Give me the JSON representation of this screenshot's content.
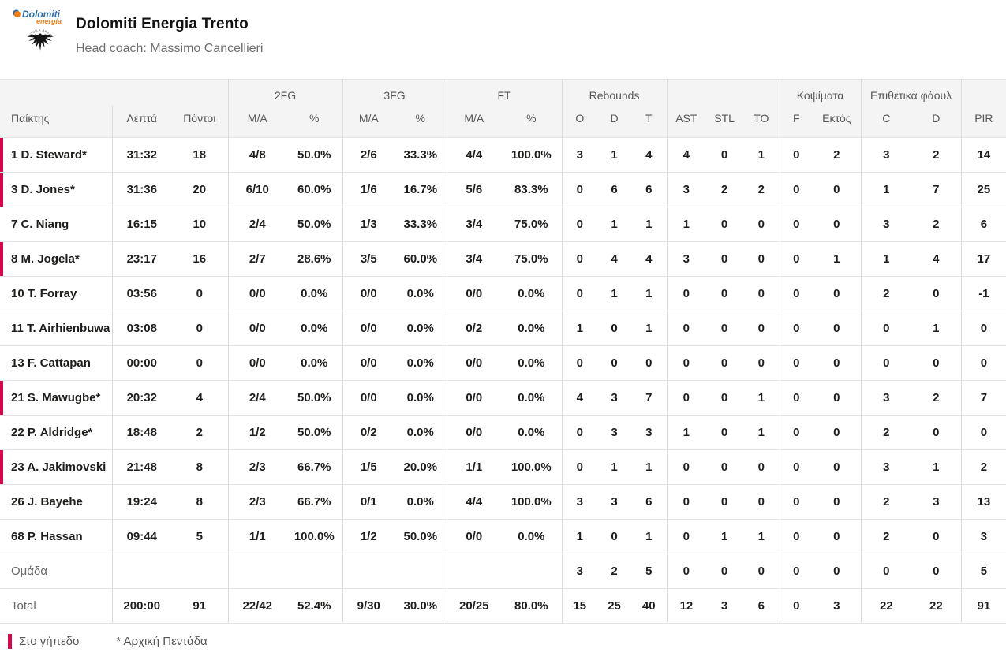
{
  "team": {
    "name": "Dolomiti Energia Trento",
    "coach": "Head coach: Massimo Cancellieri",
    "logo_line1": "Dolomiti",
    "logo_line2": "energia",
    "logo_crest_text": "AQUILA BASKET"
  },
  "colors": {
    "accent": "#d5074d",
    "header_bg": "#f4f4f4",
    "row_border": "#e4e4e4",
    "col_border": "#dcdcdc",
    "logo_blue": "#2a6fad",
    "logo_orange": "#ef7d17"
  },
  "table": {
    "groups": {
      "fg2": "2FG",
      "fg3": "3FG",
      "ft": "FT",
      "rebounds": "Rebounds",
      "blocks": "Κοψίματα",
      "fouls": "Επιθετικά φάουλ"
    },
    "columns": [
      "Παίκτης",
      "Λεπτά",
      "Πόντοι",
      "M/A",
      "%",
      "M/A",
      "%",
      "M/A",
      "%",
      "O",
      "D",
      "T",
      "AST",
      "STL",
      "TO",
      "F",
      "Εκτός",
      "C",
      "D",
      "PIR"
    ],
    "players": [
      {
        "name": "1 D. Steward*",
        "on_court": true,
        "min": "31:32",
        "pts": "18",
        "fg2": "4/8",
        "fg2p": "50.0%",
        "fg3": "2/6",
        "fg3p": "33.3%",
        "ft": "4/4",
        "ftp": "100.0%",
        "or": "3",
        "dr": "1",
        "tr": "4",
        "ast": "4",
        "stl": "0",
        "to": "1",
        "f": "0",
        "ektos": "2",
        "c": "3",
        "d": "2",
        "pir": "14"
      },
      {
        "name": "3 D. Jones*",
        "on_court": true,
        "min": "31:36",
        "pts": "20",
        "fg2": "6/10",
        "fg2p": "60.0%",
        "fg3": "1/6",
        "fg3p": "16.7%",
        "ft": "5/6",
        "ftp": "83.3%",
        "or": "0",
        "dr": "6",
        "tr": "6",
        "ast": "3",
        "stl": "2",
        "to": "2",
        "f": "0",
        "ektos": "0",
        "c": "1",
        "d": "7",
        "pir": "25"
      },
      {
        "name": "7 C. Niang",
        "on_court": false,
        "min": "16:15",
        "pts": "10",
        "fg2": "2/4",
        "fg2p": "50.0%",
        "fg3": "1/3",
        "fg3p": "33.3%",
        "ft": "3/4",
        "ftp": "75.0%",
        "or": "0",
        "dr": "1",
        "tr": "1",
        "ast": "1",
        "stl": "0",
        "to": "0",
        "f": "0",
        "ektos": "0",
        "c": "3",
        "d": "2",
        "pir": "6"
      },
      {
        "name": "8 M. Jogela*",
        "on_court": true,
        "min": "23:17",
        "pts": "16",
        "fg2": "2/7",
        "fg2p": "28.6%",
        "fg3": "3/5",
        "fg3p": "60.0%",
        "ft": "3/4",
        "ftp": "75.0%",
        "or": "0",
        "dr": "4",
        "tr": "4",
        "ast": "3",
        "stl": "0",
        "to": "0",
        "f": "0",
        "ektos": "1",
        "c": "1",
        "d": "4",
        "pir": "17"
      },
      {
        "name": "10 T. Forray",
        "on_court": false,
        "min": "03:56",
        "pts": "0",
        "fg2": "0/0",
        "fg2p": "0.0%",
        "fg3": "0/0",
        "fg3p": "0.0%",
        "ft": "0/0",
        "ftp": "0.0%",
        "or": "0",
        "dr": "1",
        "tr": "1",
        "ast": "0",
        "stl": "0",
        "to": "0",
        "f": "0",
        "ektos": "0",
        "c": "2",
        "d": "0",
        "pir": "-1"
      },
      {
        "name": "11 T. Airhienbuwa",
        "on_court": false,
        "min": "03:08",
        "pts": "0",
        "fg2": "0/0",
        "fg2p": "0.0%",
        "fg3": "0/0",
        "fg3p": "0.0%",
        "ft": "0/2",
        "ftp": "0.0%",
        "or": "1",
        "dr": "0",
        "tr": "1",
        "ast": "0",
        "stl": "0",
        "to": "0",
        "f": "0",
        "ektos": "0",
        "c": "0",
        "d": "1",
        "pir": "0"
      },
      {
        "name": "13 F. Cattapan",
        "on_court": false,
        "min": "00:00",
        "pts": "0",
        "fg2": "0/0",
        "fg2p": "0.0%",
        "fg3": "0/0",
        "fg3p": "0.0%",
        "ft": "0/0",
        "ftp": "0.0%",
        "or": "0",
        "dr": "0",
        "tr": "0",
        "ast": "0",
        "stl": "0",
        "to": "0",
        "f": "0",
        "ektos": "0",
        "c": "0",
        "d": "0",
        "pir": "0"
      },
      {
        "name": "21 S. Mawugbe*",
        "on_court": true,
        "min": "20:32",
        "pts": "4",
        "fg2": "2/4",
        "fg2p": "50.0%",
        "fg3": "0/0",
        "fg3p": "0.0%",
        "ft": "0/0",
        "ftp": "0.0%",
        "or": "4",
        "dr": "3",
        "tr": "7",
        "ast": "0",
        "stl": "0",
        "to": "1",
        "f": "0",
        "ektos": "0",
        "c": "3",
        "d": "2",
        "pir": "7"
      },
      {
        "name": "22 P. Aldridge*",
        "on_court": false,
        "min": "18:48",
        "pts": "2",
        "fg2": "1/2",
        "fg2p": "50.0%",
        "fg3": "0/2",
        "fg3p": "0.0%",
        "ft": "0/0",
        "ftp": "0.0%",
        "or": "0",
        "dr": "3",
        "tr": "3",
        "ast": "1",
        "stl": "0",
        "to": "1",
        "f": "0",
        "ektos": "0",
        "c": "2",
        "d": "0",
        "pir": "0"
      },
      {
        "name": "23 A. Jakimovski",
        "on_court": true,
        "min": "21:48",
        "pts": "8",
        "fg2": "2/3",
        "fg2p": "66.7%",
        "fg3": "1/5",
        "fg3p": "20.0%",
        "ft": "1/1",
        "ftp": "100.0%",
        "or": "0",
        "dr": "1",
        "tr": "1",
        "ast": "0",
        "stl": "0",
        "to": "0",
        "f": "0",
        "ektos": "0",
        "c": "3",
        "d": "1",
        "pir": "2"
      },
      {
        "name": "26 J. Bayehe",
        "on_court": false,
        "min": "19:24",
        "pts": "8",
        "fg2": "2/3",
        "fg2p": "66.7%",
        "fg3": "0/1",
        "fg3p": "0.0%",
        "ft": "4/4",
        "ftp": "100.0%",
        "or": "3",
        "dr": "3",
        "tr": "6",
        "ast": "0",
        "stl": "0",
        "to": "0",
        "f": "0",
        "ektos": "0",
        "c": "2",
        "d": "3",
        "pir": "13"
      },
      {
        "name": "68 P. Hassan",
        "on_court": false,
        "min": "09:44",
        "pts": "5",
        "fg2": "1/1",
        "fg2p": "100.0%",
        "fg3": "1/2",
        "fg3p": "50.0%",
        "ft": "0/0",
        "ftp": "0.0%",
        "or": "1",
        "dr": "0",
        "tr": "1",
        "ast": "0",
        "stl": "1",
        "to": "1",
        "f": "0",
        "ektos": "0",
        "c": "2",
        "d": "0",
        "pir": "3"
      }
    ],
    "team_row": {
      "name": "Ομάδα",
      "on_court": false,
      "or": "3",
      "dr": "2",
      "tr": "5",
      "ast": "0",
      "stl": "0",
      "to": "0",
      "f": "0",
      "ektos": "0",
      "c": "0",
      "d": "0",
      "pir": "5"
    },
    "total_row": {
      "name": "Total",
      "on_court": false,
      "min": "200:00",
      "pts": "91",
      "fg2": "22/42",
      "fg2p": "52.4%",
      "fg3": "9/30",
      "fg3p": "30.0%",
      "ft": "20/25",
      "ftp": "80.0%",
      "or": "15",
      "dr": "25",
      "tr": "40",
      "ast": "12",
      "stl": "3",
      "to": "6",
      "f": "0",
      "ektos": "3",
      "c": "22",
      "d": "22",
      "pir": "91"
    }
  },
  "legend": {
    "on_court": "Στο γήπεδο",
    "starters": "* Αρχική Πεντάδα"
  }
}
